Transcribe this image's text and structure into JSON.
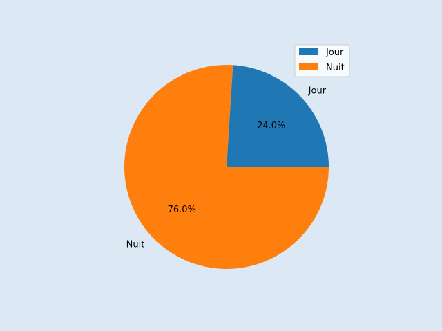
{
  "chart_data": {
    "type": "pie",
    "categories": [
      "Jour",
      "Nuit"
    ],
    "values": [
      24.0,
      76.0
    ],
    "pct_labels": [
      "24.0%",
      "76.0%"
    ],
    "colors": [
      "#1f77b4",
      "#ff7f0e"
    ],
    "start_angle_deg": 0,
    "direction": "counterclockwise",
    "legend": {
      "placement": "top-right",
      "entries": [
        "Jour",
        "Nuit"
      ]
    }
  },
  "background_color": "#dce9f4"
}
